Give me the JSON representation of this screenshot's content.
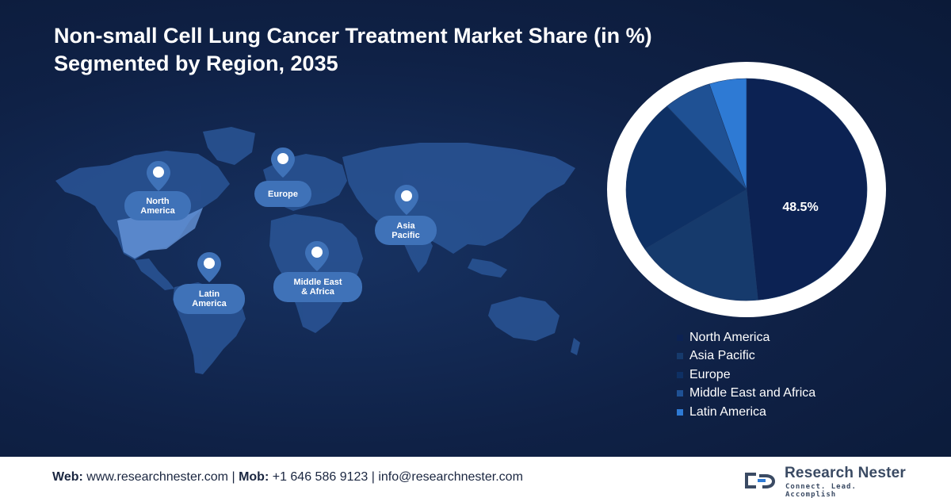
{
  "title": {
    "line1": "Non-small Cell Lung Cancer Treatment Market Share (in %)",
    "line2": "Segmented by Region, 2035"
  },
  "map_labels": {
    "north_america": [
      "North",
      "America"
    ],
    "europe": [
      "Europe"
    ],
    "asia_pacific": [
      "Asia",
      "Pacific"
    ],
    "latin_america": [
      "Latin",
      "America"
    ],
    "middle_east_africa": [
      "Middle East",
      "& Africa"
    ]
  },
  "chart_data": {
    "type": "pie",
    "title": "Non-small Cell Lung Cancer Treatment Market Share (in %) Segmented by Region, 2035",
    "categories": [
      "North America",
      "Asia Pacific",
      "Europe",
      "Middle East and Africa",
      "Latin America"
    ],
    "values": [
      48.5,
      17.5,
      22.5,
      6.5,
      5.0
    ],
    "data_labels": [
      "48.5%",
      "",
      "",
      "",
      ""
    ],
    "colors": [
      "#0c2253",
      "#163a6c",
      "#0e3064",
      "#1f5194",
      "#2e7ad4"
    ],
    "legend_position": "bottom-right"
  },
  "footer": {
    "web_label": "Web:",
    "web_value": "www.researchnester.com",
    "mob_label": "Mob:",
    "mob_value": "+1 646 586 9123",
    "email_value": "info@researchnester.com",
    "separator": "|"
  },
  "logo": {
    "name": "Research Nester",
    "tagline": "Connect. Lead. Accomplish",
    "icon": "research-nester-logo-icon"
  }
}
